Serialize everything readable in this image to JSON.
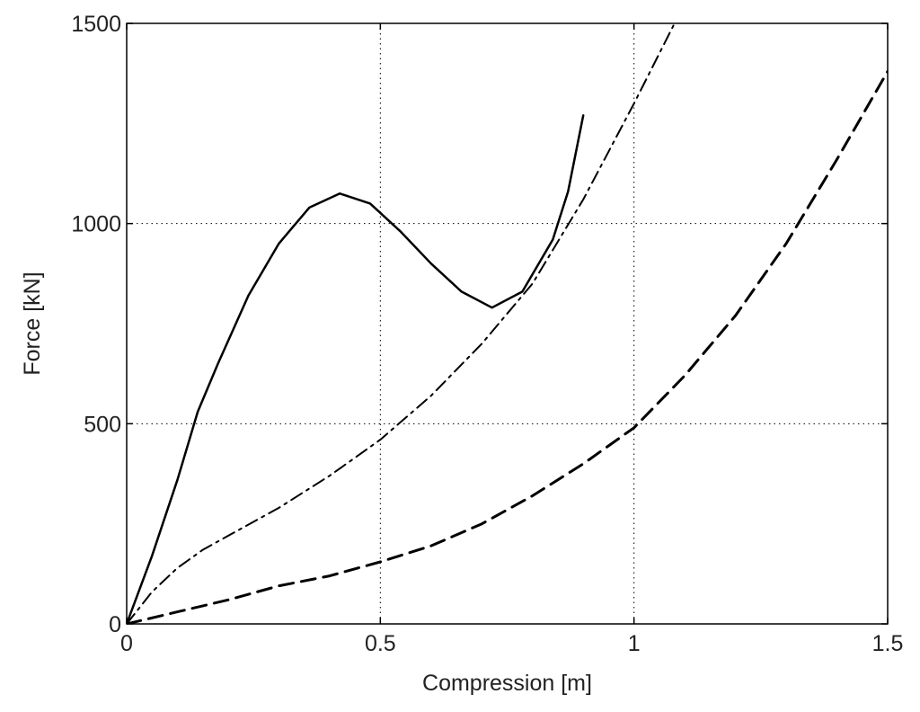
{
  "chart_data": {
    "type": "line",
    "title": "",
    "xlabel": "Compression [m]",
    "ylabel": "Force [kN]",
    "xlim": [
      0,
      1.5
    ],
    "ylim": [
      0,
      1500
    ],
    "xticks": [
      0,
      0.5,
      1,
      1.5
    ],
    "yticks": [
      0,
      500,
      1000,
      1500
    ],
    "xtick_labels": [
      "0",
      "0.5",
      "1",
      "1.5"
    ],
    "ytick_labels": [
      "0",
      "500",
      "1000",
      "1500"
    ],
    "grid": true,
    "series": [
      {
        "style": "solid",
        "color": "#000000",
        "x": [
          0,
          0.05,
          0.1,
          0.14,
          0.18,
          0.24,
          0.3,
          0.36,
          0.42,
          0.48,
          0.54,
          0.6,
          0.66,
          0.72,
          0.78,
          0.84,
          0.87,
          0.9
        ],
        "y": [
          0,
          170,
          360,
          530,
          650,
          820,
          950,
          1040,
          1075,
          1050,
          980,
          900,
          830,
          790,
          830,
          960,
          1080,
          1270
        ]
      },
      {
        "style": "dash-dot",
        "color": "#000000",
        "x": [
          0,
          0.05,
          0.1,
          0.15,
          0.2,
          0.3,
          0.4,
          0.5,
          0.6,
          0.7,
          0.8,
          0.9,
          1.0,
          1.08
        ],
        "y": [
          0,
          80,
          140,
          185,
          220,
          290,
          370,
          460,
          570,
          700,
          850,
          1060,
          1300,
          1500
        ]
      },
      {
        "style": "dashed",
        "color": "#000000",
        "x": [
          0,
          0.1,
          0.2,
          0.3,
          0.4,
          0.5,
          0.6,
          0.7,
          0.8,
          0.9,
          1.0,
          1.1,
          1.2,
          1.3,
          1.4,
          1.5
        ],
        "y": [
          0,
          30,
          60,
          95,
          120,
          155,
          195,
          250,
          320,
          400,
          490,
          620,
          770,
          950,
          1160,
          1380
        ]
      }
    ]
  }
}
